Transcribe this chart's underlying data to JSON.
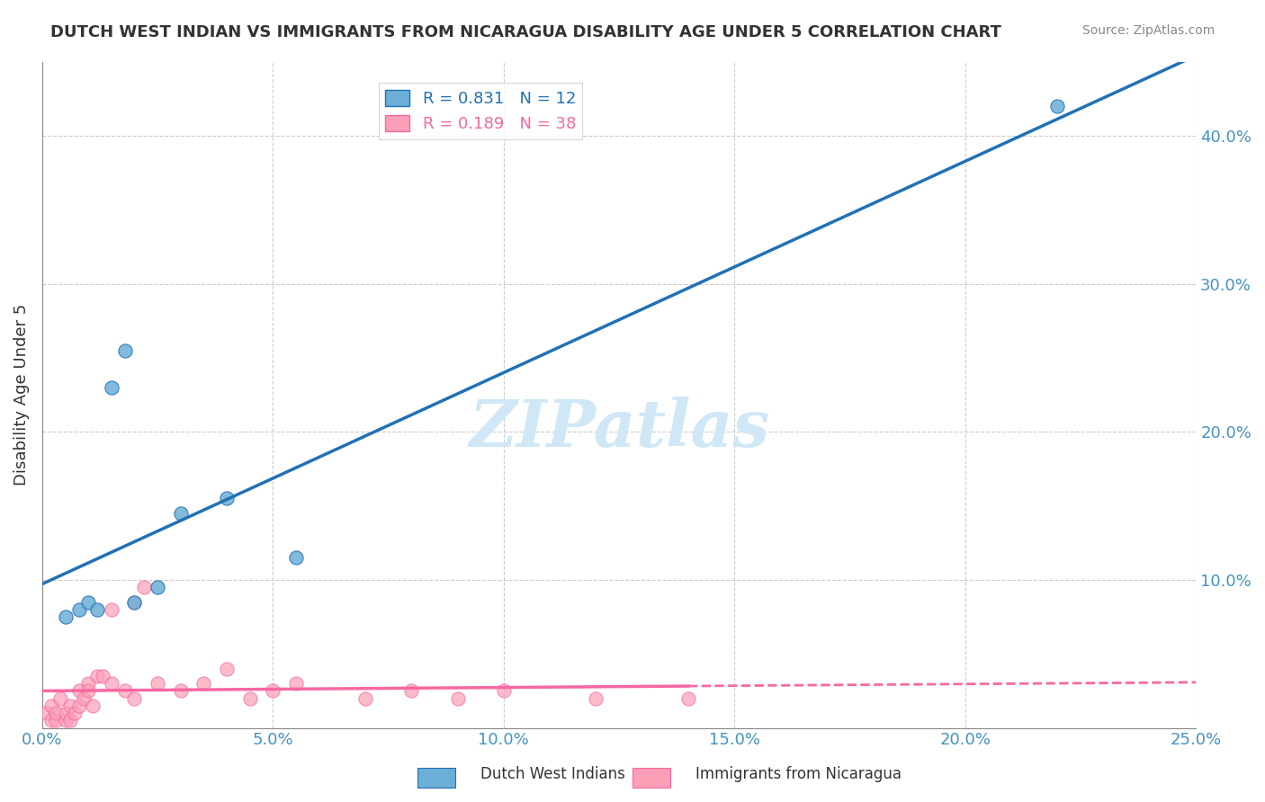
{
  "title": "DUTCH WEST INDIAN VS IMMIGRANTS FROM NICARAGUA DISABILITY AGE UNDER 5 CORRELATION CHART",
  "source": "Source: ZipAtlas.com",
  "xlabel_bottom": "",
  "ylabel": "Disability Age Under 5",
  "x_ticks": [
    0.0,
    5.0,
    10.0,
    15.0,
    20.0,
    25.0
  ],
  "x_tick_labels": [
    "0.0%",
    "5.0%",
    "10.0%",
    "15.0%",
    "20.0%",
    "25.0%"
  ],
  "y_ticks": [
    0.0,
    10.0,
    20.0,
    30.0,
    40.0
  ],
  "y_tick_labels": [
    "",
    "10.0%",
    "20.0%",
    "30.0%",
    "40.0%"
  ],
  "xlim": [
    0.0,
    25.0
  ],
  "ylim": [
    0.0,
    45.0
  ],
  "blue_scatter_x": [
    0.5,
    0.8,
    1.0,
    1.2,
    1.5,
    1.8,
    2.0,
    2.5,
    3.0,
    4.0,
    5.5,
    22.0
  ],
  "blue_scatter_y": [
    7.5,
    8.0,
    8.5,
    8.0,
    23.0,
    25.5,
    8.5,
    9.5,
    14.5,
    15.5,
    11.5,
    42.0
  ],
  "pink_scatter_x": [
    0.1,
    0.2,
    0.2,
    0.3,
    0.3,
    0.4,
    0.5,
    0.5,
    0.6,
    0.6,
    0.7,
    0.8,
    0.8,
    0.9,
    1.0,
    1.0,
    1.1,
    1.2,
    1.3,
    1.5,
    1.5,
    1.8,
    2.0,
    2.0,
    2.2,
    2.5,
    3.0,
    3.5,
    4.0,
    4.5,
    5.0,
    5.5,
    7.0,
    8.0,
    9.0,
    10.0,
    12.0,
    14.0
  ],
  "pink_scatter_y": [
    1.0,
    0.5,
    1.5,
    0.5,
    1.0,
    2.0,
    0.5,
    1.0,
    0.5,
    1.5,
    1.0,
    1.5,
    2.5,
    2.0,
    3.0,
    2.5,
    1.5,
    3.5,
    3.5,
    3.0,
    8.0,
    2.5,
    8.5,
    2.0,
    9.5,
    3.0,
    2.5,
    3.0,
    4.0,
    2.0,
    2.5,
    3.0,
    2.0,
    2.5,
    2.0,
    2.5,
    2.0,
    2.0
  ],
  "blue_R": 0.831,
  "blue_N": 12,
  "pink_R": 0.189,
  "pink_N": 38,
  "blue_color": "#6baed6",
  "pink_color": "#fa9fb5",
  "blue_line_color": "#2171b5",
  "pink_line_color": "#f768a1",
  "grid_color": "#cccccc",
  "title_color": "#333333",
  "axis_label_color": "#4393c3",
  "tick_color": "#4393c3",
  "background_color": "#ffffff",
  "watermark": "ZIPatlas",
  "watermark_color": "#d0e8f5",
  "legend_label_blue": "Dutch West Indians",
  "legend_label_pink": "Immigrants from Nicaragua"
}
